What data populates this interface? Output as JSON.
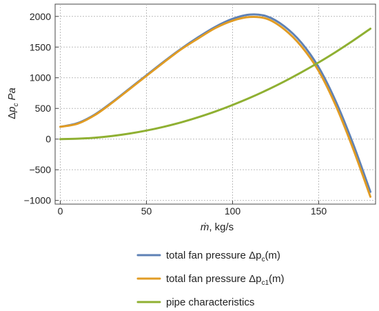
{
  "chart_data": {
    "type": "line",
    "title": "",
    "xlabel": {
      "symbol": "ṁ",
      "unit": ", kg/s"
    },
    "ylabel": {
      "delta": "Δ",
      "symbol": "p",
      "sub": "c",
      "unit": "Pa"
    },
    "xlim": [
      -3,
      183
    ],
    "ylim": [
      -1060,
      2200
    ],
    "x_ticks": [
      0,
      50,
      100,
      150
    ],
    "y_ticks": [
      -1000,
      -500,
      0,
      500,
      1000,
      1500,
      2000
    ],
    "grid": true,
    "legend_position": "bottom",
    "series": [
      {
        "name": "total fan pressure Δp_c(m)",
        "legend": {
          "main": "total fan pressure Δp",
          "sub": "c",
          "tail": "(m)"
        },
        "color": "#5e81b5",
        "x": [
          0,
          10,
          20,
          30,
          40,
          50,
          60,
          70,
          80,
          90,
          100,
          110,
          120,
          130,
          140,
          150,
          160,
          170,
          180
        ],
        "y": [
          200,
          260,
          400,
          600,
          820,
          1040,
          1260,
          1470,
          1660,
          1830,
          1960,
          2030,
          2000,
          1840,
          1570,
          1170,
          610,
          -80,
          -860
        ]
      },
      {
        "name": "total fan pressure Δp_c1(m)",
        "legend": {
          "main": "total fan pressure Δp",
          "sub": "c1",
          "tail": "(m)"
        },
        "color": "#e19c24",
        "x": [
          0,
          10,
          20,
          30,
          40,
          50,
          60,
          70,
          80,
          90,
          100,
          110,
          120,
          130,
          140,
          150,
          160,
          170,
          180
        ],
        "y": [
          200,
          250,
          390,
          590,
          810,
          1030,
          1250,
          1460,
          1640,
          1810,
          1930,
          1990,
          1960,
          1790,
          1510,
          1110,
          540,
          -160,
          -940
        ]
      },
      {
        "name": "pipe characteristics",
        "legend": {
          "main": "pipe characteristics",
          "sub": "",
          "tail": ""
        },
        "color": "#8fb032",
        "x": [
          0,
          10,
          20,
          30,
          40,
          50,
          60,
          70,
          80,
          90,
          100,
          110,
          120,
          130,
          140,
          150,
          160,
          170,
          180
        ],
        "y": [
          0,
          6,
          22,
          50,
          89,
          139,
          200,
          272,
          356,
          450,
          556,
          672,
          800,
          939,
          1089,
          1250,
          1422,
          1606,
          1800
        ]
      }
    ]
  }
}
